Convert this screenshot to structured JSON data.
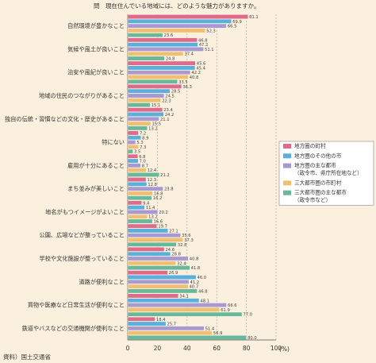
{
  "chart_data": {
    "type": "bar",
    "orientation": "horizontal",
    "question": "問　現在住んでいる地域には、どのような魅力がありますか。",
    "source": "資料）国土交通省",
    "xlabel_unit": "(%)",
    "xlim": [
      0,
      100
    ],
    "xticks": [
      "0",
      "20",
      "40",
      "60",
      "80",
      "100"
    ],
    "grid": "vertical dashed",
    "legend_position": "right",
    "categories": [
      "自然環境が豊かなこと",
      "気候や風土が良いこと",
      "治安や風紀が良いこと",
      "地域の住民のつながりがあること",
      "独自の伝統・習慣などの文化・歴史があること",
      "特にない",
      "雇用が十分にあること",
      "まち並みが美しいこと",
      "地名がもつイメージがよいこと",
      "公園、広場などが整っていること",
      "学校や文化施設が整っていること",
      "道路が便利なこと",
      "買物や医療など日常生活が便利なこと",
      "鉄道やバスなどの交通機関が便利なこと"
    ],
    "series": [
      {
        "name": "地方圏の町村",
        "color": "#e06a8a",
        "values": [
          81.1,
          46.8,
          45.6,
          36.3,
          23.4,
          7.2,
          6.8,
          12.3,
          9.4,
          19.7,
          24.6,
          26.9,
          34.1,
          18.4
        ]
      },
      {
        "name": "地方圏のその他の市",
        "color": "#5ab0d8",
        "values": [
          69.9,
          47.2,
          45.4,
          28.5,
          24.2,
          8.9,
          7.0,
          12.8,
          11.4,
          27.1,
          28.8,
          46.0,
          48.1,
          25.7
        ]
      },
      {
        "name": "地方圏の主な都市\n（政令市、県庁所在地など）",
        "color": "#a89ad0",
        "values": [
          66.5,
          51.1,
          42.2,
          24.5,
          21.1,
          5.3,
          8.7,
          23.8,
          20.2,
          35.6,
          40.8,
          41.2,
          66.6,
          51.4
        ]
      },
      {
        "name": "三大都市圏の市町村",
        "color": "#f0c070",
        "values": [
          52.3,
          37.4,
          40.8,
          22.3,
          15.5,
          7.3,
          12.4,
          16.8,
          13.2,
          37.3,
          32.4,
          40.7,
          61.9,
          56.9
        ]
      },
      {
        "name": "三大都市圏の主な都市\n（政令市など）",
        "color": "#6ab89a",
        "values": [
          23.6,
          24.8,
          33.5,
          15.1,
          13.2,
          3.5,
          21.2,
          16.2,
          16.6,
          32.8,
          41.8,
          46.8,
          77.0,
          80.0
        ]
      }
    ]
  }
}
